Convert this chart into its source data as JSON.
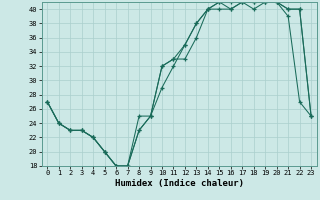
{
  "xlabel": "Humidex (Indice chaleur)",
  "ylabel": "",
  "xlim": [
    -0.5,
    23.5
  ],
  "ylim": [
    18,
    41
  ],
  "yticks": [
    18,
    20,
    22,
    24,
    26,
    28,
    30,
    32,
    34,
    36,
    38,
    40
  ],
  "xticks": [
    0,
    1,
    2,
    3,
    4,
    5,
    6,
    7,
    8,
    9,
    10,
    11,
    12,
    13,
    14,
    15,
    16,
    17,
    18,
    19,
    20,
    21,
    22,
    23
  ],
  "bg_color": "#cce8e6",
  "grid_color": "#aacfcd",
  "line_color": "#1a6b5a",
  "series1_x": [
    0,
    1,
    2,
    3,
    4,
    5,
    6,
    7,
    8,
    9,
    10,
    11,
    12,
    13,
    14,
    15,
    16,
    17,
    18,
    19,
    20,
    21,
    22,
    23
  ],
  "series1_y": [
    27,
    24,
    23,
    23,
    22,
    20,
    18,
    18,
    23,
    25,
    29,
    32,
    35,
    38,
    40,
    40,
    40,
    41,
    41,
    41,
    41,
    39,
    27,
    25
  ],
  "series2_x": [
    0,
    1,
    2,
    3,
    4,
    5,
    6,
    7,
    8,
    9,
    10,
    11,
    12,
    13,
    14,
    15,
    16,
    17,
    18,
    19,
    20,
    21,
    22,
    23
  ],
  "series2_y": [
    27,
    24,
    23,
    23,
    22,
    20,
    18,
    18,
    23,
    25,
    32,
    33,
    35,
    38,
    40,
    41,
    41,
    41,
    41,
    41,
    41,
    40,
    40,
    25
  ],
  "series3_x": [
    0,
    1,
    2,
    3,
    4,
    5,
    6,
    7,
    8,
    9,
    10,
    11,
    12,
    13,
    14,
    15,
    16,
    17,
    18,
    19,
    20,
    21,
    22,
    23
  ],
  "series3_y": [
    27,
    24,
    23,
    23,
    22,
    20,
    18,
    18,
    25,
    25,
    32,
    33,
    33,
    36,
    40,
    41,
    40,
    41,
    40,
    41,
    41,
    40,
    40,
    25
  ]
}
